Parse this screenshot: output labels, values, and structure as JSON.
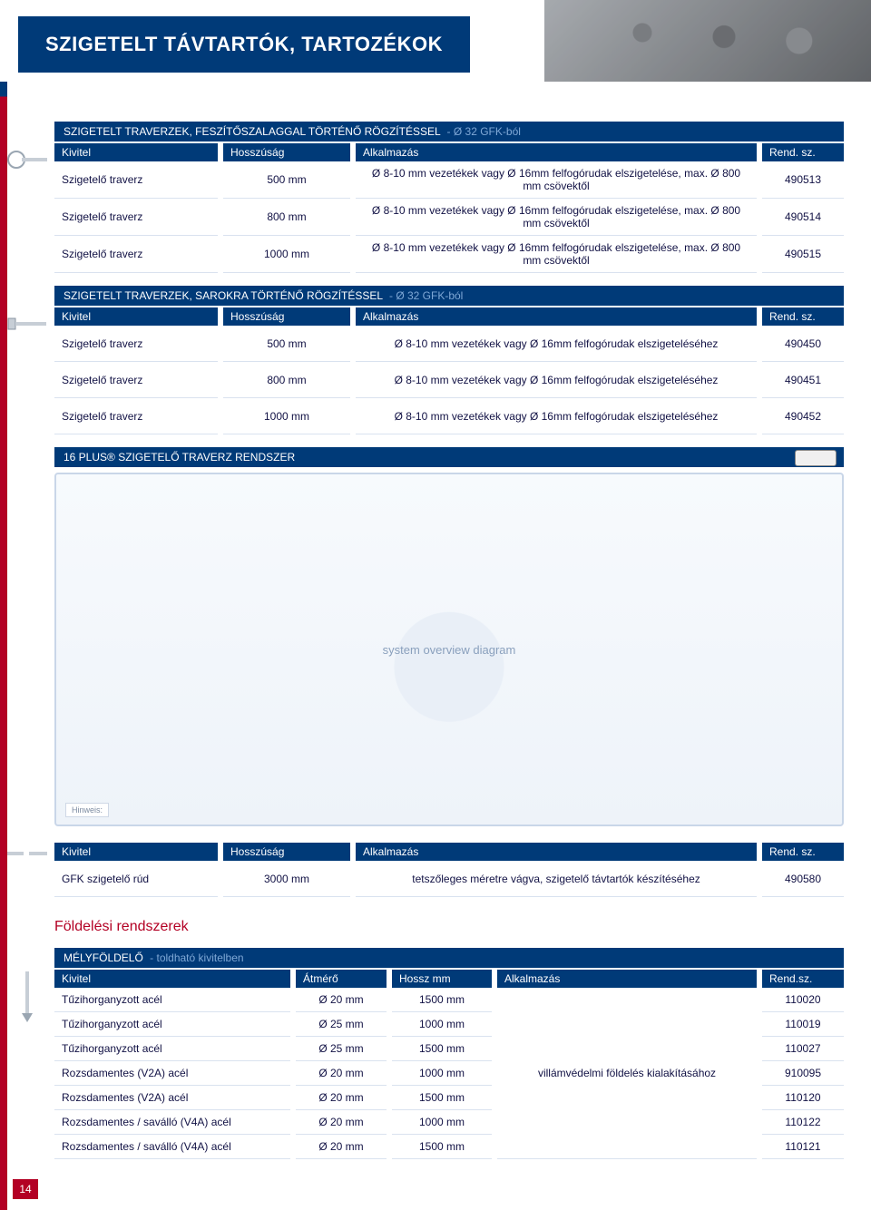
{
  "page": {
    "title": "SZIGETELT TÁVTARTÓK, TARTOZÉKOK",
    "pageNumber": "14"
  },
  "sectionA": {
    "bar_main": "SZIGETELT TRAVERZEK, FESZÍTŐSZALAGGAL TÖRTÉNŐ RÖGZÍTÉSSEL",
    "bar_suffix": "- Ø 32 GFK-ból",
    "headers": {
      "c1": "Kivitel",
      "c2": "Hosszúság",
      "c3": "Alkalmazás",
      "c4": "Rend. sz."
    },
    "rows": [
      {
        "c1": "Szigetelő traverz",
        "c2": "500 mm",
        "c3": "Ø 8-10 mm vezetékek vagy Ø 16mm felfogórudak elszigetelése, max. Ø 800 mm csövektől",
        "c4": "490513"
      },
      {
        "c1": "Szigetelő traverz",
        "c2": "800 mm",
        "c3": "Ø 8-10 mm vezetékek vagy Ø 16mm felfogórudak elszigetelése, max. Ø 800 mm csövektől",
        "c4": "490514"
      },
      {
        "c1": "Szigetelő traverz",
        "c2": "1000 mm",
        "c3": "Ø 8-10 mm vezetékek vagy Ø 16mm felfogórudak elszigetelése, max. Ø 800 mm csövektől",
        "c4": "490515"
      }
    ]
  },
  "sectionB": {
    "bar_main": "SZIGETELT TRAVERZEK, SAROKRA TÖRTÉNŐ RÖGZÍTÉSSEL",
    "bar_suffix": "- Ø 32 GFK-ból",
    "headers": {
      "c1": "Kivitel",
      "c2": "Hosszúság",
      "c3": "Alkalmazás",
      "c4": "Rend. sz."
    },
    "rows": [
      {
        "c1": "Szigetelő traverz",
        "c2": "500 mm",
        "c3": "Ø 8-10 mm vezetékek vagy Ø 16mm felfogórudak elszigeteléséhez",
        "c4": "490450"
      },
      {
        "c1": "Szigetelő traverz",
        "c2": "800 mm",
        "c3": "Ø 8-10 mm vezetékek vagy Ø 16mm felfogórudak elszigeteléséhez",
        "c4": "490451"
      },
      {
        "c1": "Szigetelő traverz",
        "c2": "1000 mm",
        "c3": "Ø 8-10 mm vezetékek vagy Ø 16mm felfogórudak elszigeteléséhez",
        "c4": "490452"
      }
    ]
  },
  "diagram": {
    "bar_main": "16 PLUS® SZIGETELŐ TRAVERZ RENDSZER",
    "placeholder": "system overview diagram",
    "hint_label": "Hinweis:"
  },
  "sectionGFK": {
    "headers": {
      "c1": "Kivitel",
      "c2": "Hosszúság",
      "c3": "Alkalmazás",
      "c4": "Rend. sz."
    },
    "rows": [
      {
        "c1": "GFK szigetelő rúd",
        "c2": "3000 mm",
        "c3": "tetszőleges méretre vágva, szigetelő távtartók készítéséhez",
        "c4": "490580"
      }
    ]
  },
  "groundingHeading": "Földelési rendszerek",
  "sectionGround": {
    "bar_main": "MÉLYFÖLDELŐ",
    "bar_suffix": "- toldható kivitelben",
    "headers": {
      "c1": "Kivitel",
      "c2": "Átmérő",
      "c3": "Hossz mm",
      "c4": "Alkalmazás",
      "c5": "Rend.sz."
    },
    "sharedApplication": "villámvédelmi földelés kialakításához",
    "rows": [
      {
        "c1": "Tűzihorganyzott acél",
        "c2": "Ø 20 mm",
        "c3": "1500 mm",
        "c5": "110020"
      },
      {
        "c1": "Tűzihorganyzott acél",
        "c2": "Ø 25 mm",
        "c3": "1000 mm",
        "c5": "110019"
      },
      {
        "c1": "Tűzihorganyzott acél",
        "c2": "Ø 25 mm",
        "c3": "1500 mm",
        "c5": "110027"
      },
      {
        "c1": "Rozsdamentes (V2A) acél",
        "c2": "Ø 20 mm",
        "c3": "1000 mm",
        "c5": "910095"
      },
      {
        "c1": "Rozsdamentes (V2A) acél",
        "c2": "Ø 20 mm",
        "c3": "1500 mm",
        "c5": "110120"
      },
      {
        "c1": "Rozsdamentes / saválló (V4A) acél",
        "c2": "Ø 20 mm",
        "c3": "1000 mm",
        "c5": "110122"
      },
      {
        "c1": "Rozsdamentes / saválló (V4A) acél",
        "c2": "Ø 20 mm",
        "c3": "1500 mm",
        "c5": "110121"
      }
    ]
  },
  "colors": {
    "brand_navy": "#003a78",
    "brand_red": "#b30024",
    "row_border": "#d9e2ef",
    "text": "#114"
  }
}
